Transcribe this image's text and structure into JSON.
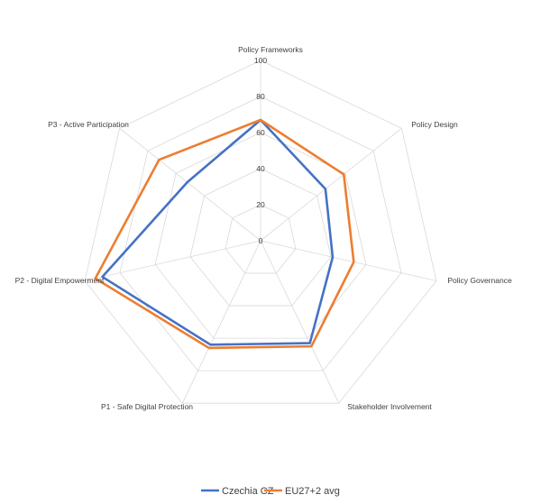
{
  "chart_data": {
    "type": "radar",
    "title": "",
    "axes": [
      "Policy Frameworks",
      "Policy Design",
      "Policy Governance",
      "Stakeholder Involvement",
      "P1 - Safe Digital Protection",
      "P2 - Digital Empowerment",
      "P3 - Active Participation"
    ],
    "ticks": [
      0,
      20,
      40,
      60,
      80,
      100
    ],
    "range": [
      0,
      100
    ],
    "grid": true,
    "legend_position": "bottom",
    "series": [
      {
        "name": "Czechia CZ",
        "color": "#4472C4",
        "values": [
          67,
          46,
          41,
          63,
          64,
          90,
          52
        ]
      },
      {
        "name": "EU27+2 avg",
        "color": "#ED7D31",
        "values": [
          67,
          59,
          53,
          65,
          66,
          94,
          72
        ]
      }
    ]
  }
}
